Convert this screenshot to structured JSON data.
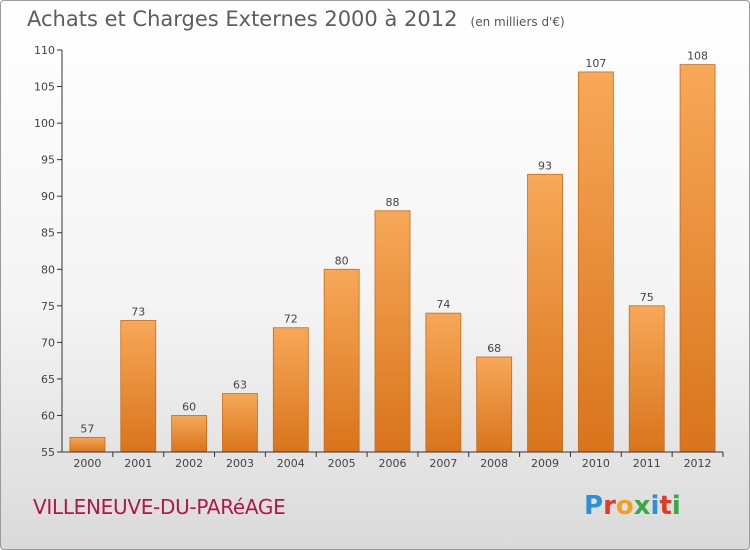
{
  "header": {
    "title": "Achats et Charges Externes 2000 à 2012",
    "subtitle": "(en milliers d'€)"
  },
  "footer": {
    "commune": "VILLENEUVE-DU-PARéAGE",
    "logo_letters": [
      "P",
      "r",
      "o",
      "x",
      "i",
      "t",
      "i"
    ],
    "logo_colors": [
      "#2e8fd9",
      "#e23a2a",
      "#f0a11f",
      "#3aa845",
      "#2e8fd9",
      "#e23a2a",
      "#3aa845"
    ]
  },
  "chart_data": {
    "type": "bar",
    "categories": [
      "2000",
      "2001",
      "2002",
      "2003",
      "2004",
      "2005",
      "2006",
      "2007",
      "2008",
      "2009",
      "2010",
      "2011",
      "2012"
    ],
    "values": [
      57,
      73,
      60,
      63,
      72,
      80,
      88,
      74,
      68,
      93,
      107,
      75,
      108
    ],
    "data_labels": [
      "57",
      "73",
      "60",
      "63",
      "72",
      "80",
      "88",
      "74",
      "68",
      "93",
      "107",
      "75",
      "108"
    ],
    "yticks": [
      "55",
      "60",
      "65",
      "70",
      "75",
      "80",
      "85",
      "90",
      "95",
      "100",
      "105",
      "110"
    ],
    "ylim": [
      55,
      110
    ],
    "grid": false,
    "colors": {
      "bar_light": "#f7a858",
      "bar_dark": "#d9741c",
      "bar_edge": "#c96a1a",
      "axis": "#333333",
      "text": "#444444"
    }
  }
}
